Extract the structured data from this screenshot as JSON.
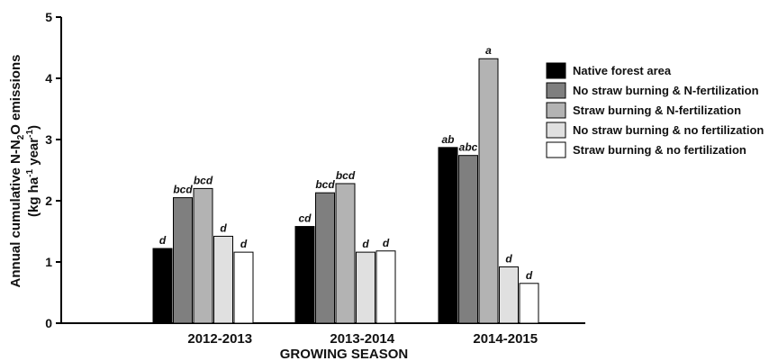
{
  "chart_data": {
    "type": "bar",
    "xlabel": "GROWING SEASON",
    "ylabel_line1": "Annual cumulative N-N2O emissions",
    "ylabel_line2": "(kg ha-1 year-1)",
    "ylim": [
      0,
      5
    ],
    "yticks": [
      "0",
      "1",
      "2",
      "3",
      "4",
      "5"
    ],
    "categories": [
      "2012-2013",
      "2013-2014",
      "2014-2015"
    ],
    "legend_position": "right",
    "series": [
      {
        "name": "Native forest area",
        "color": "#000000",
        "values": [
          1.22,
          1.58,
          2.87
        ],
        "labels": [
          "d",
          "cd",
          "ab"
        ]
      },
      {
        "name": "No straw burning & N-fertilization",
        "color": "#7f7f7f",
        "values": [
          2.05,
          2.13,
          2.74
        ],
        "labels": [
          "bcd",
          "bcd",
          "abc"
        ]
      },
      {
        "name": "Straw burning & N-fertilization",
        "color": "#b3b3b3",
        "values": [
          2.2,
          2.28,
          4.32
        ],
        "labels": [
          "bcd",
          "bcd",
          "a"
        ]
      },
      {
        "name": "No straw burning & no fertilization",
        "color": "#e0e0e0",
        "values": [
          1.42,
          1.16,
          0.92
        ],
        "labels": [
          "d",
          "d",
          "d"
        ]
      },
      {
        "name": "Straw burning & no fertilization",
        "color": "#ffffff",
        "values": [
          1.16,
          1.18,
          0.65
        ],
        "labels": [
          "d",
          "d",
          "d"
        ]
      }
    ]
  }
}
